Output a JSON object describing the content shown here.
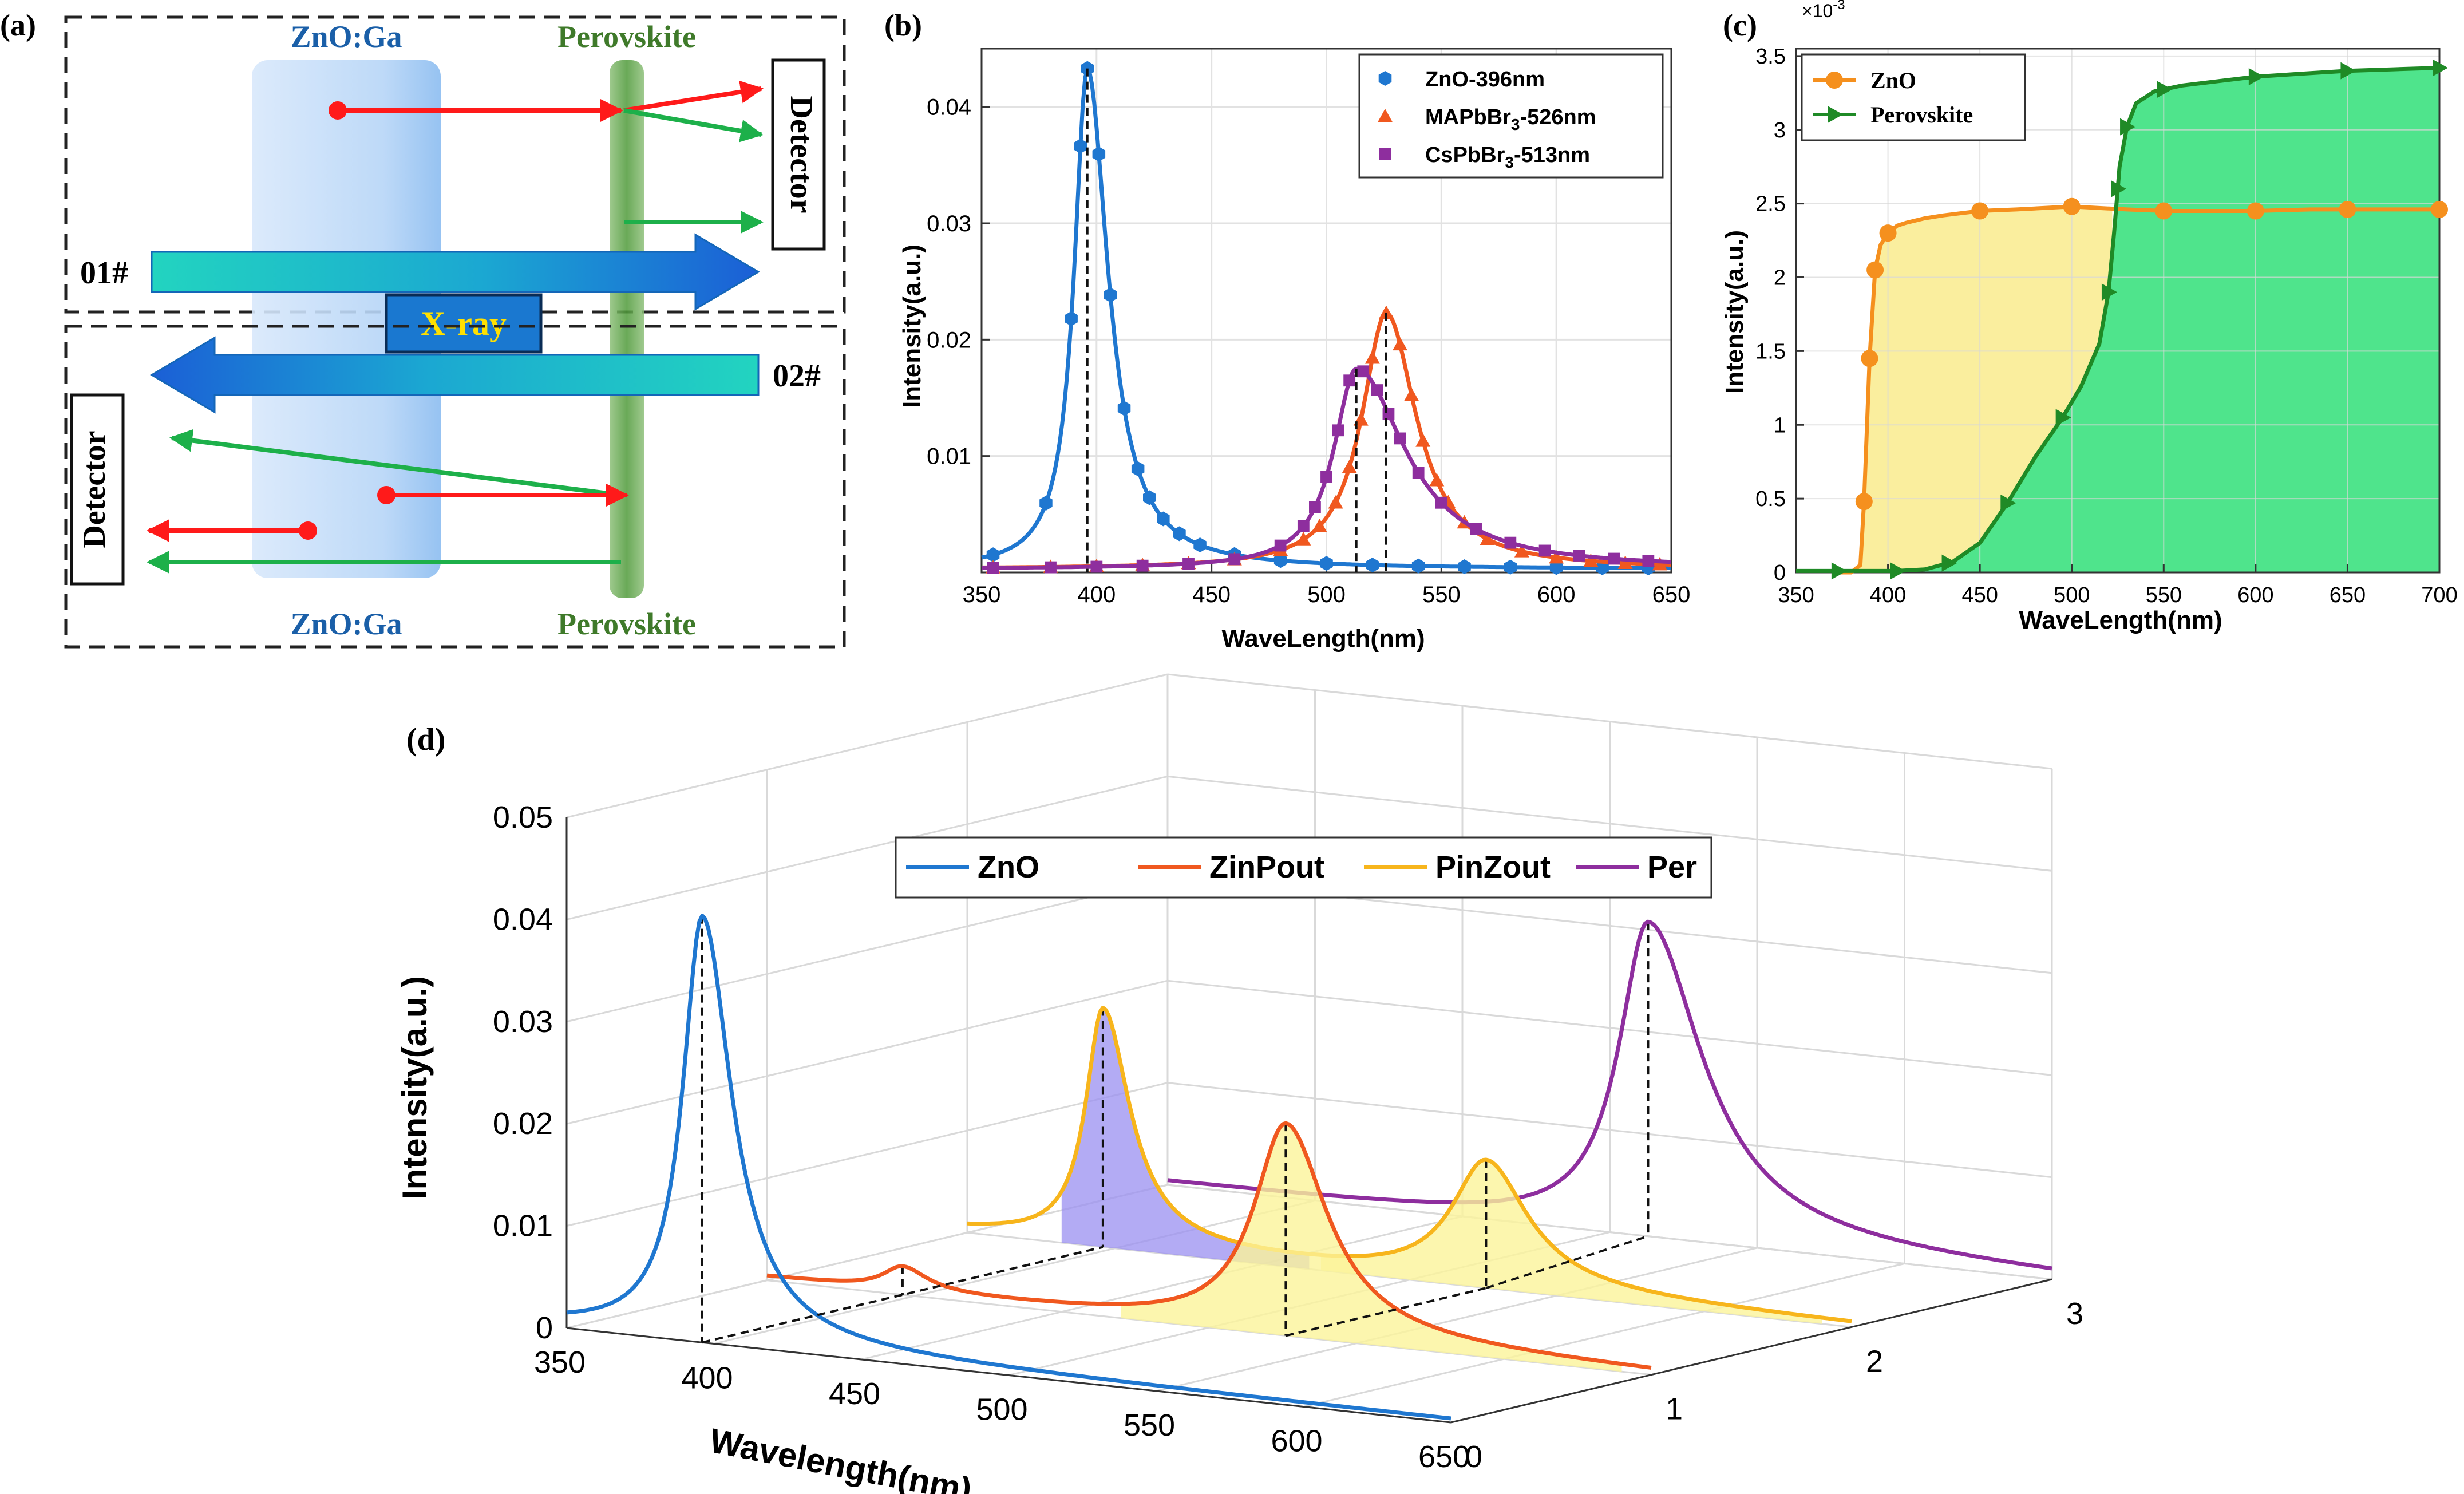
{
  "figure": {
    "panel_labels": {
      "a": "(a)",
      "b": "(b)",
      "c": "(c)",
      "d": "(d)"
    },
    "panel_a": {
      "top": {
        "layer_left": "ZnO:Ga",
        "layer_right": "Perovskite",
        "detector": "Detector",
        "beam_id": "01#"
      },
      "bottom": {
        "layer_left": "ZnO:Ga",
        "layer_right": "Perovskite",
        "detector": "Detector",
        "beam_id": "02#"
      },
      "xray_label": "X-ray",
      "colors": {
        "beam": "#1b7bd6",
        "beam_start": "#22d4c0",
        "zno": "#a9cdf5",
        "perov": "#4f9a3a",
        "red": "#ff1a1a",
        "green": "#1db04a",
        "xray_text": "#ffe000"
      }
    }
  },
  "chart_data": [
    {
      "id": "b",
      "type": "line",
      "xlabel": "WaveLength(nm)",
      "ylabel": "Intensity(a.u.)",
      "xlim": [
        350,
        650
      ],
      "ylim": [
        0,
        0.045
      ],
      "xticks": [
        350,
        400,
        450,
        500,
        550,
        600,
        650
      ],
      "yticks": [
        0.01,
        0.02,
        0.03,
        0.04
      ],
      "ytick_labels": [
        "0.01",
        "0.02",
        "0.03",
        "0.04"
      ],
      "legend": {
        "position": "top-right",
        "entries": [
          {
            "main": "ZnO-396nm",
            "sub": "",
            "tail": ""
          },
          {
            "main": "MAPbBr",
            "sub": "3",
            "tail": "-526nm"
          },
          {
            "main": "CsPbBr",
            "sub": "3",
            "tail": "-513nm"
          }
        ]
      },
      "series": [
        {
          "name": "ZnO-396nm",
          "color": "#1f77d0",
          "marker": "hexagon",
          "peaks": [
            {
              "center": 396,
              "height": 0.043,
              "w_left": 7,
              "w_right": 11
            }
          ],
          "baseline": 0.0003,
          "markers_x": [
            355,
            378,
            389,
            393,
            396,
            401,
            406,
            412,
            418,
            423,
            429,
            436,
            445,
            460,
            480,
            500,
            520,
            540,
            560,
            580,
            600,
            620,
            640
          ]
        },
        {
          "name": "MAPbBr3-526nm",
          "color": "#f0581f",
          "marker": "triangle",
          "peaks": [
            {
              "center": 526,
              "height": 0.022,
              "w_left": 13,
              "w_right": 16
            }
          ],
          "baseline": 0.0003,
          "markers_x": [
            355,
            380,
            400,
            420,
            440,
            460,
            480,
            490,
            497,
            504,
            510,
            515,
            520,
            526,
            532,
            537,
            542,
            548,
            553,
            560,
            570,
            585,
            600,
            615,
            630,
            645
          ]
        },
        {
          "name": "CsPbBr3-513nm",
          "color": "#8e2e9e",
          "marker": "square",
          "peaks": [
            {
              "center": 513,
              "height": 0.0172,
              "w_left": 12,
              "w_right": 26
            }
          ],
          "baseline": 0.0003,
          "markers_x": [
            355,
            380,
            400,
            420,
            440,
            460,
            480,
            490,
            495,
            500,
            505,
            510,
            516,
            522,
            527,
            532,
            540,
            550,
            565,
            580,
            595,
            610,
            625,
            640
          ]
        }
      ],
      "dashed_peaks": [
        396,
        526,
        513
      ]
    },
    {
      "id": "c",
      "type": "area",
      "xlabel": "WaveLength(nm)",
      "ylabel": "Intensity(a.u.)",
      "multiplier": "×10",
      "multiplier_exp": "-3",
      "xlim": [
        350,
        700
      ],
      "ylim": [
        0,
        3.55
      ],
      "xticks": [
        350,
        400,
        450,
        500,
        550,
        600,
        650,
        700
      ],
      "yticks": [
        0,
        0.5,
        1,
        1.5,
        2,
        2.5,
        3,
        3.5
      ],
      "ytick_labels": [
        "0",
        "0.5",
        "1",
        "1.5",
        "2",
        "2.5",
        "3",
        "3.5"
      ],
      "legend": {
        "position": "top-left",
        "entries": [
          "ZnO",
          "Perovskite"
        ]
      },
      "series": [
        {
          "name": "ZnO",
          "color": "#f5901e",
          "fill": "#faee9e",
          "marker": "circle",
          "x": [
            370,
            380,
            385,
            387,
            390,
            393,
            396,
            400,
            405,
            410,
            420,
            430,
            450,
            470,
            500,
            530,
            550,
            570,
            600,
            630,
            650,
            680,
            700
          ],
          "y": [
            0,
            0,
            0.05,
            0.48,
            1.45,
            2.05,
            2.22,
            2.3,
            2.35,
            2.37,
            2.4,
            2.42,
            2.45,
            2.46,
            2.48,
            2.46,
            2.45,
            2.45,
            2.45,
            2.46,
            2.46,
            2.46,
            2.46
          ],
          "markers_x": [
            387,
            390,
            393,
            400,
            450,
            500,
            550,
            600,
            650,
            700
          ]
        },
        {
          "name": "Perovskite",
          "color": "#1f8a26",
          "fill": "#4fe48c",
          "marker": "triangle-right",
          "x": [
            350,
            375,
            390,
            405,
            420,
            435,
            450,
            465,
            480,
            495,
            505,
            515,
            520,
            523,
            526,
            530,
            535,
            545,
            560,
            580,
            600,
            625,
            650,
            675,
            700
          ],
          "y": [
            0.01,
            0.01,
            0.01,
            0.01,
            0.02,
            0.07,
            0.2,
            0.47,
            0.78,
            1.05,
            1.26,
            1.55,
            1.9,
            2.3,
            2.75,
            3.02,
            3.18,
            3.26,
            3.3,
            3.33,
            3.36,
            3.38,
            3.4,
            3.41,
            3.42
          ],
          "markers_x": [
            373,
            405,
            433,
            465,
            495,
            520,
            525,
            530,
            550,
            600,
            650,
            700
          ]
        }
      ]
    },
    {
      "id": "d",
      "type": "line",
      "projection": "3d",
      "xlabel": "Wavelength(nm)",
      "ylabel": "Intensity(a.u.)",
      "xlim": [
        350,
        650
      ],
      "zlim": [
        0,
        0.05
      ],
      "depth_lim": [
        0,
        3
      ],
      "xticks": [
        350,
        400,
        450,
        500,
        550,
        600,
        650
      ],
      "zticks": [
        0,
        0.01,
        0.02,
        0.03,
        0.04,
        0.05
      ],
      "ztick_labels": [
        "0",
        "0.01",
        "0.02",
        "0.03",
        "0.04",
        "0.05"
      ],
      "depth_ticks": [
        0,
        1,
        2,
        3
      ],
      "legend": {
        "position": "top-center",
        "entries": [
          "ZnO",
          "ZinPout",
          "PinZout",
          "Per"
        ]
      },
      "series": [
        {
          "name": "ZnO",
          "depth": 0,
          "color": "#1f77d0",
          "fill": "",
          "peaks": [
            {
              "center": 396,
              "height": 0.0415,
              "w_left": 8,
              "w_right": 12
            }
          ],
          "baseline": 0.0003,
          "dashed_peaks": [
            396
          ]
        },
        {
          "name": "ZinPout",
          "depth": 1,
          "color": "#f0581f",
          "fill": "#fbf49a",
          "peaks": [
            {
              "center": 396,
              "height": 0.0023,
              "w_left": 8,
              "w_right": 10
            },
            {
              "center": 526,
              "height": 0.0205,
              "w_left": 13,
              "w_right": 17
            }
          ],
          "baseline": 0.0003,
          "dashed_peaks": [
            396,
            526
          ]
        },
        {
          "name": "PinZout",
          "depth": 2,
          "color": "#f7b51c",
          "fill": "#fbf49a",
          "peaks": [
            {
              "center": 396,
              "height": 0.023,
              "w_left": 7,
              "w_right": 11
            },
            {
              "center": 526,
              "height": 0.0121,
              "w_left": 14,
              "w_right": 17
            }
          ],
          "baseline": 0.0003,
          "dashed_peaks": [
            396,
            526
          ],
          "violet_fill_center": 396
        },
        {
          "name": "Per",
          "depth": 3,
          "color": "#8e2e9e",
          "fill": "",
          "peaks": [
            {
              "center": 513,
              "height": 0.0305,
              "w_left": 12,
              "w_right": 22
            }
          ],
          "baseline": 0.0003,
          "dashed_peaks": [
            513
          ]
        }
      ]
    }
  ]
}
